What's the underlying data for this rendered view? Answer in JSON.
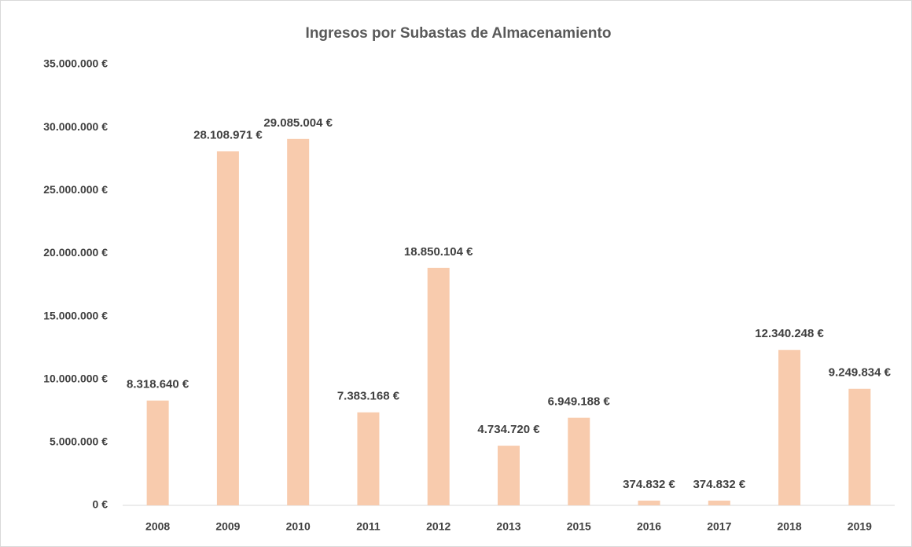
{
  "chart_data": {
    "type": "bar",
    "title": "Ingresos por Subastas de Almacenamiento",
    "categories": [
      "2008",
      "2009",
      "2010",
      "2011",
      "2012",
      "2013",
      "2015",
      "2016",
      "2017",
      "2018",
      "2019"
    ],
    "values": [
      8318640,
      28108971,
      29085004,
      7383168,
      18850104,
      4734720,
      6949188,
      374832,
      374832,
      12340248,
      9249834
    ],
    "value_labels": [
      "8.318.640 €",
      "28.108.971 €",
      "29.085.004 €",
      "7.383.168 €",
      "18.850.104 €",
      "4.734.720 €",
      "6.949.188 €",
      "374.832 €",
      "374.832 €",
      "12.340.248 €",
      "9.249.834 €"
    ],
    "color": "#f8cbad",
    "ylim": [
      0,
      35000000
    ],
    "yticks": [
      {
        "value": 0,
        "label": "0 €"
      },
      {
        "value": 5000000,
        "label": "5.000.000 €"
      },
      {
        "value": 10000000,
        "label": "10.000.000 €"
      },
      {
        "value": 15000000,
        "label": "15.000.000 €"
      },
      {
        "value": 20000000,
        "label": "20.000.000 €"
      },
      {
        "value": 25000000,
        "label": "25.000.000 €"
      },
      {
        "value": 30000000,
        "label": "30.000.000 €"
      },
      {
        "value": 35000000,
        "label": "35.000.000 €"
      }
    ],
    "grid": false
  }
}
